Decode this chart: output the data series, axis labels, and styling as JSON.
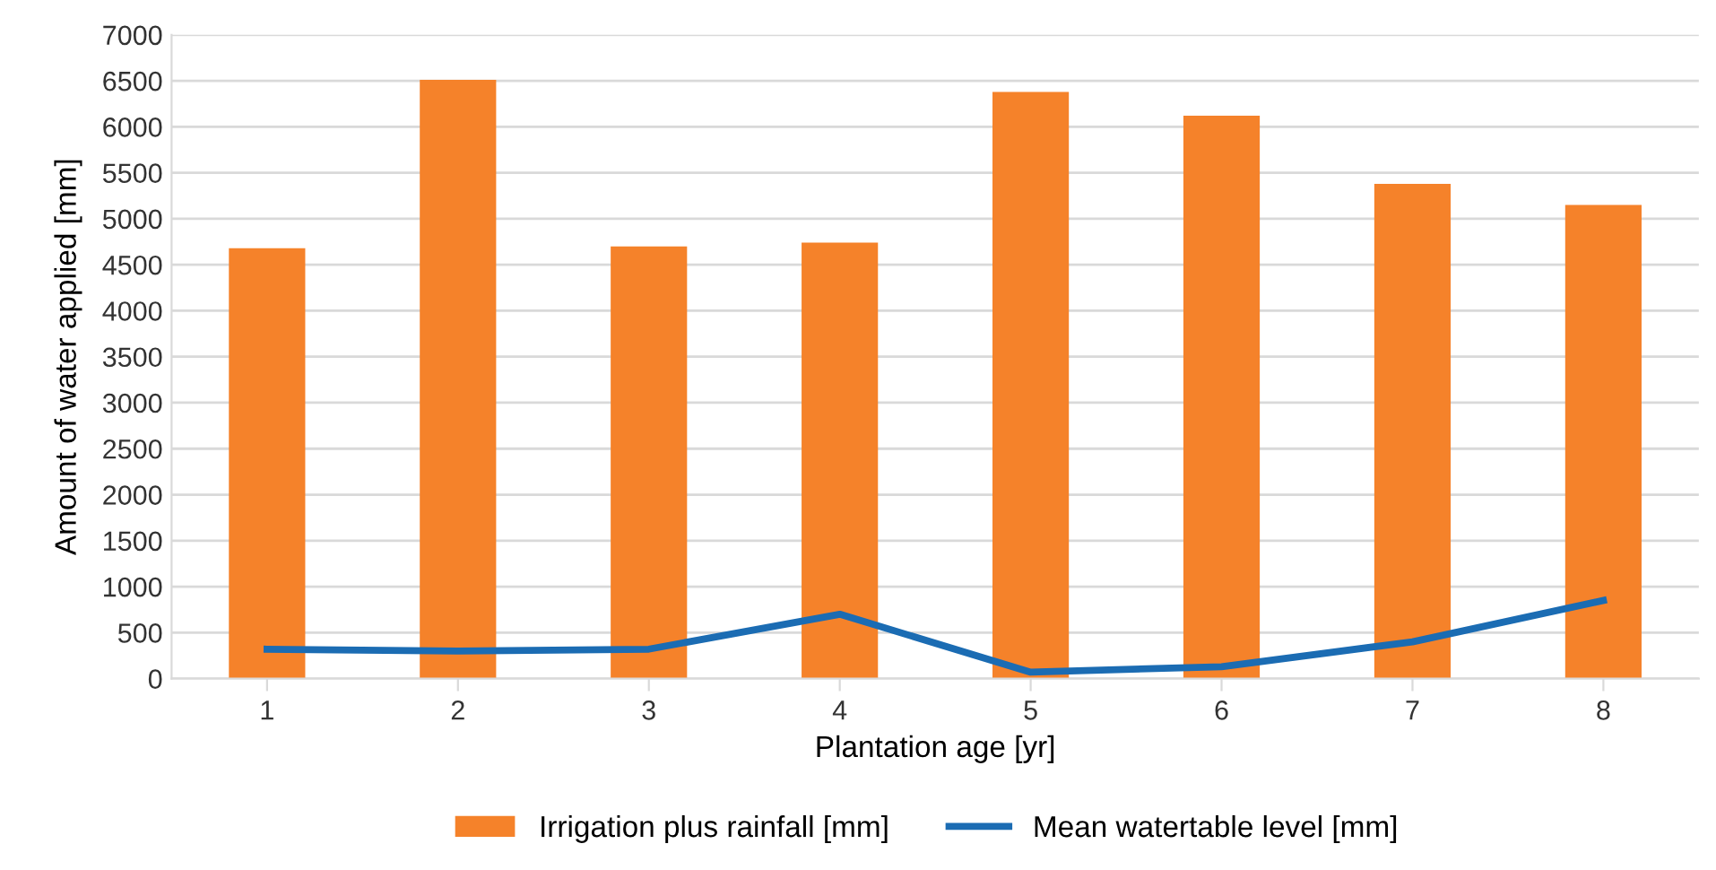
{
  "chart_data": {
    "type": "bar",
    "xlabel": "Plantation age [yr]",
    "ylabel": "Amount of water applied [mm]",
    "categories": [
      "1",
      "2",
      "3",
      "4",
      "5",
      "6",
      "7",
      "8"
    ],
    "series": [
      {
        "name": "Irrigation plus rainfall [mm]",
        "color": "#f5822a",
        "values": [
          4680,
          6510,
          4700,
          4740,
          6380,
          6120,
          5380,
          5150
        ]
      },
      {
        "name": "Mean watertable level [mm]",
        "type": "line",
        "color": "#1b6cb3",
        "values": [
          320,
          300,
          320,
          700,
          70,
          130,
          400,
          850
        ]
      }
    ],
    "ylim": [
      0,
      7000
    ],
    "yticks": [
      0,
      500,
      1000,
      1500,
      2000,
      2500,
      3000,
      3500,
      4000,
      4500,
      5000,
      5500,
      6000,
      6500,
      7000
    ],
    "grid": "y",
    "legend": "bottom",
    "marker": "none",
    "line_style": "solid"
  }
}
